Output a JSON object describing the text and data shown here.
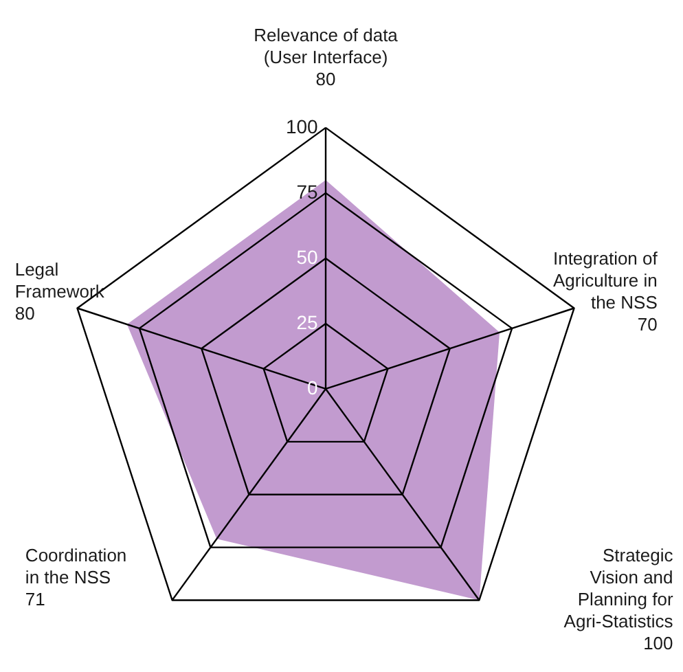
{
  "chart_data": {
    "type": "radar",
    "categories": [
      "Relevance of data\n(User Interface)\n80",
      "Integration of\nAgriculture in\nthe NSS\n70",
      "Strategic\nVision and\nPlanning for\nAgri-Statistics\n100",
      "Coordination\nin the NSS\n71",
      "Legal\nFramework\n80"
    ],
    "series": [
      {
        "color": "#c29bcf",
        "values": [
          80,
          70,
          100,
          71,
          80
        ]
      }
    ],
    "ylim": [
      0,
      100
    ],
    "yticks": [
      0,
      25,
      50,
      75,
      100
    ],
    "grid": true
  }
}
